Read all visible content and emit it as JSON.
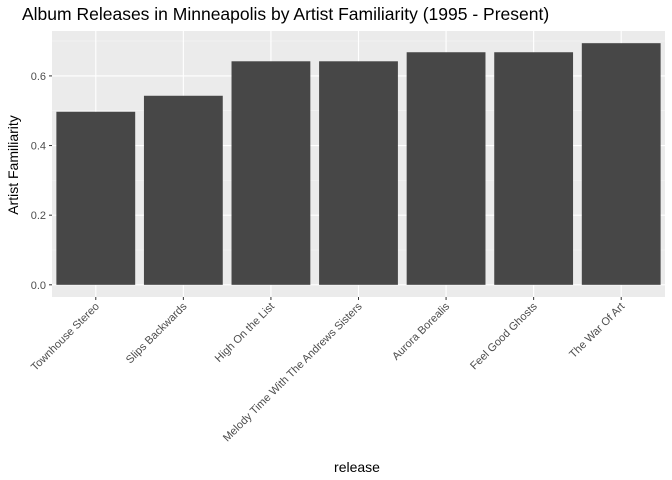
{
  "chart_data": {
    "type": "bar",
    "title": "Album Releases in Minneapolis by Artist Familiarity (1995 - Present)",
    "xlabel": "release",
    "ylabel": "Artist Familiarity",
    "categories": [
      "Townhouse Stereo",
      "Slips Backwards",
      "High On the List",
      "Melody Time With The Andrews Sisters",
      "Aurora Borealis",
      "Feel Good Ghosts",
      "The War Of Art"
    ],
    "values": [
      0.497,
      0.543,
      0.642,
      0.642,
      0.668,
      0.668,
      0.694
    ],
    "ylim": [
      -0.035,
      0.729
    ],
    "yticks": [
      0.0,
      0.2,
      0.4,
      0.6
    ],
    "ytick_labels": [
      "0.0",
      "0.2",
      "0.4",
      "0.6"
    ],
    "grid": true,
    "legend": "none",
    "colors": {
      "bar": "#474747",
      "panel": "#ebebeb",
      "grid_major": "#ffffff",
      "grid_minor": "#f5f5f5",
      "tick": "#333333"
    }
  }
}
